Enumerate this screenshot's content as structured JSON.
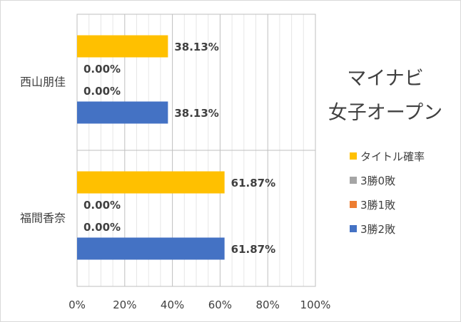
{
  "chart_data": {
    "type": "bar",
    "orientation": "horizontal",
    "title_lines": [
      "マイナビ",
      "女子オープン"
    ],
    "categories": [
      "西山朋佳",
      "福間香奈"
    ],
    "series": [
      {
        "name": "タイトル確率",
        "color": "#FFC000",
        "values": [
          38.13,
          61.87
        ],
        "labels": [
          "38.13%",
          "61.87%"
        ]
      },
      {
        "name": "3勝0敗",
        "color": "#A5A5A5",
        "values": [
          0,
          0
        ],
        "labels": [
          "0.00%",
          "0.00%"
        ]
      },
      {
        "name": "3勝1敗",
        "color": "#ED7D31",
        "values": [
          0,
          0
        ],
        "labels": [
          "0.00%",
          "0.00%"
        ]
      },
      {
        "name": "3勝2敗",
        "color": "#4472C4",
        "values": [
          38.13,
          61.87
        ],
        "labels": [
          "38.13%",
          "61.87%"
        ]
      }
    ],
    "xlim": [
      0,
      100
    ],
    "x_ticks": [
      0,
      20,
      40,
      60,
      80,
      100
    ],
    "x_tick_labels": [
      "0%",
      "20%",
      "40%",
      "60%",
      "80%",
      "100%"
    ],
    "grid": true,
    "legend_position": "right"
  }
}
